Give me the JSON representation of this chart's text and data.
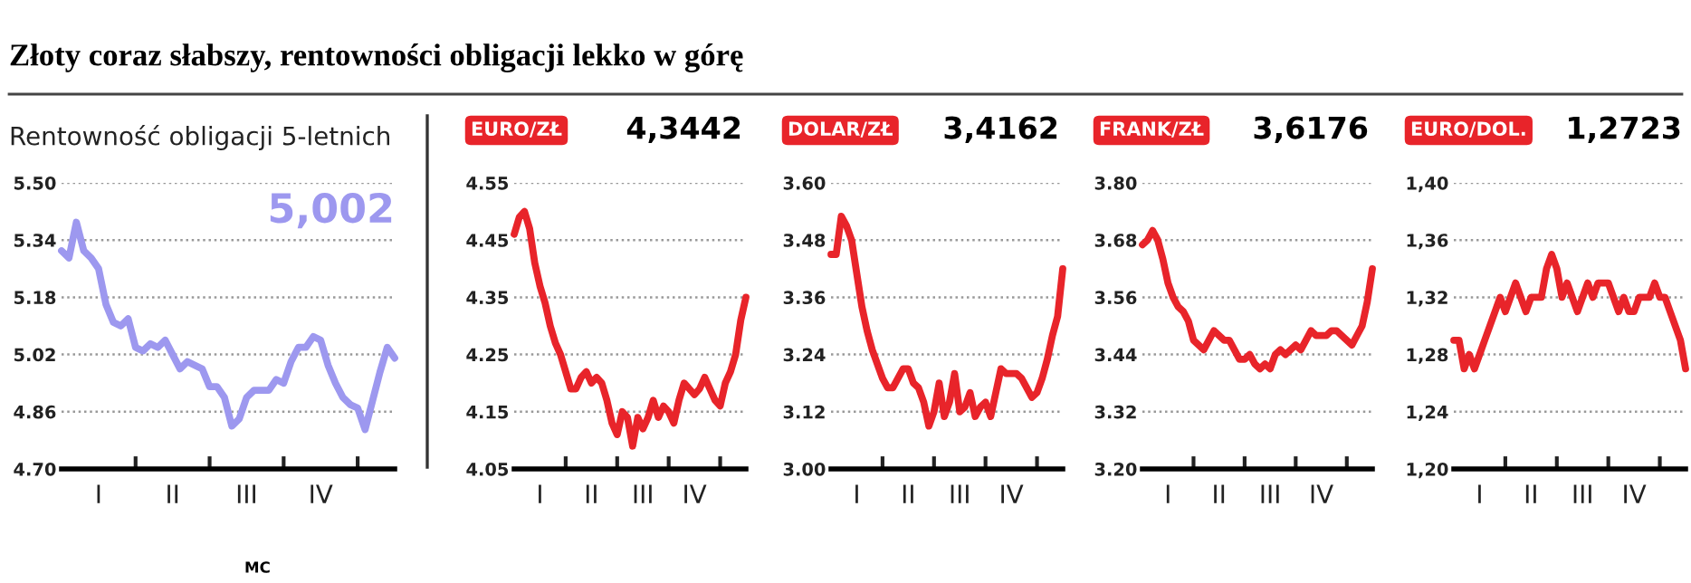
{
  "chart_data": [
    {
      "type": "line",
      "title": "Złoty coraz słabszy, rentowności obligacji lekko w górę",
      "subtitle": "Rentowność obligacji 5-letnich",
      "annotations": [
        "5,002",
        "MC"
      ],
      "categories": [
        null,
        null,
        null,
        null,
        null,
        "I",
        null,
        null,
        null,
        null,
        null,
        null,
        null,
        null,
        null,
        "II",
        null,
        null,
        null,
        null,
        null,
        null,
        null,
        null,
        null,
        "III",
        null,
        null,
        null,
        null,
        null,
        null,
        null,
        null,
        null,
        "IV",
        null,
        null,
        null,
        null,
        null,
        null,
        null,
        null,
        null,
        null
      ],
      "series": [
        {
          "color": "#9d98ef",
          "values": [
            5.31,
            5.29,
            5.39,
            5.31,
            5.29,
            5.26,
            5.16,
            5.11,
            5.1,
            5.12,
            5.04,
            5.03,
            5.05,
            5.04,
            5.06,
            5.02,
            4.98,
            5.0,
            4.99,
            4.98,
            4.93,
            4.93,
            4.9,
            4.82,
            4.84,
            4.9,
            4.92,
            4.92,
            4.92,
            4.95,
            4.94,
            5.0,
            5.04,
            5.04,
            5.07,
            5.06,
            4.99,
            4.94,
            4.9,
            4.88,
            4.87,
            4.81,
            4.89,
            4.97,
            5.04,
            5.01
          ]
        }
      ],
      "ylim": [
        4.7,
        5.5
      ],
      "yticks": [
        {
          "value": 4.7,
          "label": "4.70"
        },
        {
          "value": 4.86,
          "label": "4.86"
        },
        {
          "value": 5.02,
          "label": "5.02"
        },
        {
          "value": 5.18,
          "label": "5.18"
        },
        {
          "value": 5.34,
          "label": "5.34"
        },
        {
          "value": 5.5,
          "label": "5.50"
        }
      ],
      "grid": "y",
      "line_style": "solid",
      "marker": "none"
    },
    {
      "type": "line",
      "title": "EURO/ZŁ",
      "annotations": [
        "4,3442"
      ],
      "categories": [
        null,
        null,
        null,
        null,
        null,
        "I",
        null,
        null,
        null,
        null,
        null,
        null,
        null,
        null,
        null,
        "II",
        null,
        null,
        null,
        null,
        null,
        null,
        null,
        null,
        null,
        "III",
        null,
        null,
        null,
        null,
        null,
        null,
        null,
        null,
        null,
        "IV",
        null,
        null,
        null,
        null,
        null,
        null,
        null,
        null,
        null,
        null
      ],
      "series": [
        {
          "color": "#e8242a",
          "values": [
            4.46,
            4.49,
            4.5,
            4.47,
            4.41,
            4.37,
            4.34,
            4.3,
            4.27,
            4.25,
            4.22,
            4.19,
            4.19,
            4.21,
            4.22,
            4.2,
            4.21,
            4.2,
            4.17,
            4.13,
            4.11,
            4.15,
            4.14,
            4.09,
            4.14,
            4.12,
            4.14,
            4.17,
            4.14,
            4.16,
            4.15,
            4.13,
            4.17,
            4.2,
            4.19,
            4.18,
            4.19,
            4.21,
            4.19,
            4.17,
            4.16,
            4.2,
            4.22,
            4.25,
            4.31,
            4.35
          ]
        }
      ],
      "ylim": [
        4.05,
        4.55
      ],
      "yticks": [
        {
          "value": 4.05,
          "label": "4.05"
        },
        {
          "value": 4.15,
          "label": "4.15"
        },
        {
          "value": 4.25,
          "label": "4.25"
        },
        {
          "value": 4.35,
          "label": "4.35"
        },
        {
          "value": 4.45,
          "label": "4.45"
        },
        {
          "value": 4.55,
          "label": "4.55"
        }
      ],
      "grid": "y",
      "line_style": "solid",
      "marker": "none"
    },
    {
      "type": "line",
      "title": "DOLAR/ZŁ",
      "annotations": [
        "3,4162"
      ],
      "categories": [
        null,
        null,
        null,
        null,
        null,
        "I",
        null,
        null,
        null,
        null,
        null,
        null,
        null,
        null,
        null,
        "II",
        null,
        null,
        null,
        null,
        null,
        null,
        null,
        null,
        null,
        "III",
        null,
        null,
        null,
        null,
        null,
        null,
        null,
        null,
        null,
        "IV",
        null,
        null,
        null,
        null,
        null,
        null,
        null,
        null,
        null,
        null
      ],
      "series": [
        {
          "color": "#e8242a",
          "values": [
            3.45,
            3.45,
            3.53,
            3.51,
            3.48,
            3.41,
            3.34,
            3.29,
            3.25,
            3.22,
            3.19,
            3.17,
            3.17,
            3.19,
            3.21,
            3.21,
            3.18,
            3.17,
            3.14,
            3.09,
            3.12,
            3.18,
            3.11,
            3.14,
            3.2,
            3.12,
            3.13,
            3.16,
            3.11,
            3.13,
            3.14,
            3.11,
            3.16,
            3.21,
            3.2,
            3.2,
            3.2,
            3.19,
            3.17,
            3.15,
            3.16,
            3.19,
            3.23,
            3.28,
            3.32,
            3.42
          ]
        }
      ],
      "ylim": [
        3.0,
        3.6
      ],
      "yticks": [
        {
          "value": 3.0,
          "label": "3.00"
        },
        {
          "value": 3.12,
          "label": "3.12"
        },
        {
          "value": 3.24,
          "label": "3.24"
        },
        {
          "value": 3.36,
          "label": "3.36"
        },
        {
          "value": 3.48,
          "label": "3.48"
        },
        {
          "value": 3.6,
          "label": "3.60"
        }
      ],
      "grid": "y",
      "line_style": "solid",
      "marker": "none"
    },
    {
      "type": "line",
      "title": "FRANK/ZŁ",
      "annotations": [
        "3,6176"
      ],
      "categories": [
        null,
        null,
        null,
        null,
        null,
        "I",
        null,
        null,
        null,
        null,
        null,
        null,
        null,
        null,
        null,
        "II",
        null,
        null,
        null,
        null,
        null,
        null,
        null,
        null,
        null,
        "III",
        null,
        null,
        null,
        null,
        null,
        null,
        null,
        null,
        null,
        "IV",
        null,
        null,
        null,
        null,
        null,
        null,
        null,
        null,
        null,
        null
      ],
      "series": [
        {
          "color": "#e8242a",
          "values": [
            3.67,
            3.68,
            3.7,
            3.68,
            3.64,
            3.59,
            3.56,
            3.54,
            3.53,
            3.51,
            3.47,
            3.46,
            3.45,
            3.47,
            3.49,
            3.48,
            3.47,
            3.47,
            3.45,
            3.43,
            3.43,
            3.44,
            3.42,
            3.41,
            3.42,
            3.41,
            3.44,
            3.45,
            3.44,
            3.45,
            3.46,
            3.45,
            3.47,
            3.49,
            3.48,
            3.48,
            3.48,
            3.49,
            3.49,
            3.48,
            3.47,
            3.46,
            3.48,
            3.5,
            3.55,
            3.62
          ]
        }
      ],
      "ylim": [
        3.2,
        3.8
      ],
      "yticks": [
        {
          "value": 3.2,
          "label": "3.20"
        },
        {
          "value": 3.32,
          "label": "3.32"
        },
        {
          "value": 3.44,
          "label": "3.44"
        },
        {
          "value": 3.56,
          "label": "3.56"
        },
        {
          "value": 3.68,
          "label": "3.68"
        },
        {
          "value": 3.8,
          "label": "3.80"
        }
      ],
      "grid": "y",
      "line_style": "solid",
      "marker": "none"
    },
    {
      "type": "line",
      "title": "EURO/DOL.",
      "annotations": [
        "1,2723"
      ],
      "categories": [
        null,
        null,
        null,
        null,
        null,
        "I",
        null,
        null,
        null,
        null,
        null,
        null,
        null,
        null,
        null,
        "II",
        null,
        null,
        null,
        null,
        null,
        null,
        null,
        null,
        null,
        "III",
        null,
        null,
        null,
        null,
        null,
        null,
        null,
        null,
        null,
        "IV",
        null,
        null,
        null,
        null,
        null,
        null,
        null,
        null,
        null,
        null
      ],
      "series": [
        {
          "color": "#e8242a",
          "values": [
            1.29,
            1.29,
            1.27,
            1.28,
            1.27,
            1.28,
            1.29,
            1.3,
            1.31,
            1.32,
            1.31,
            1.32,
            1.33,
            1.32,
            1.31,
            1.32,
            1.32,
            1.32,
            1.34,
            1.35,
            1.34,
            1.32,
            1.33,
            1.32,
            1.31,
            1.32,
            1.33,
            1.32,
            1.33,
            1.33,
            1.33,
            1.32,
            1.31,
            1.32,
            1.31,
            1.31,
            1.32,
            1.32,
            1.32,
            1.33,
            1.32,
            1.32,
            1.31,
            1.3,
            1.29,
            1.27
          ]
        }
      ],
      "ylim": [
        1.2,
        1.4
      ],
      "yticks": [
        {
          "value": 1.2,
          "label": "1,20"
        },
        {
          "value": 1.24,
          "label": "1,24"
        },
        {
          "value": 1.28,
          "label": "1,28"
        },
        {
          "value": 1.32,
          "label": "1,32"
        },
        {
          "value": 1.36,
          "label": "1,36"
        },
        {
          "value": 1.4,
          "label": "1,40"
        }
      ],
      "grid": "y",
      "line_style": "solid",
      "marker": "none"
    }
  ]
}
